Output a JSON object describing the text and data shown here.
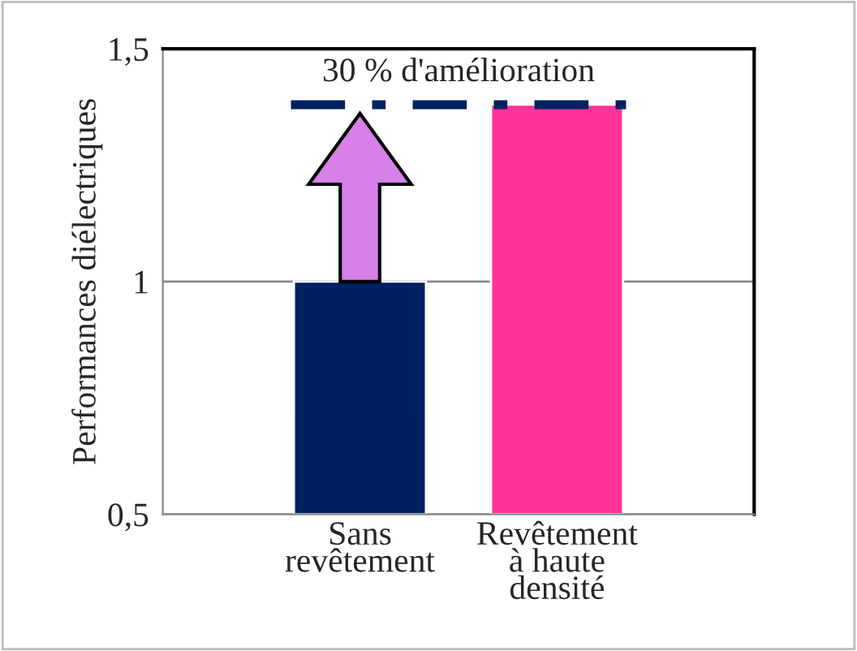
{
  "chart_data": {
    "type": "bar",
    "ylabel": "Performances diélectriques",
    "categories": [
      "Sans\nrevêtement",
      "Revêtement\nà haute\ndensité"
    ],
    "values": [
      1.0,
      1.38
    ],
    "colors": [
      "#002060",
      "#ff3399"
    ],
    "ylim": [
      0.5,
      1.5
    ],
    "yticks": [
      {
        "value": 0.5,
        "label": "0,5"
      },
      {
        "value": 1,
        "label": "1"
      },
      {
        "value": 1.5,
        "label": "1,5"
      }
    ],
    "grid": "y",
    "ref_lines": [
      {
        "axis": "y",
        "value": 1.38,
        "label": "30 % d'amélioration",
        "color": "#002060",
        "line_style": "dashed"
      }
    ]
  }
}
